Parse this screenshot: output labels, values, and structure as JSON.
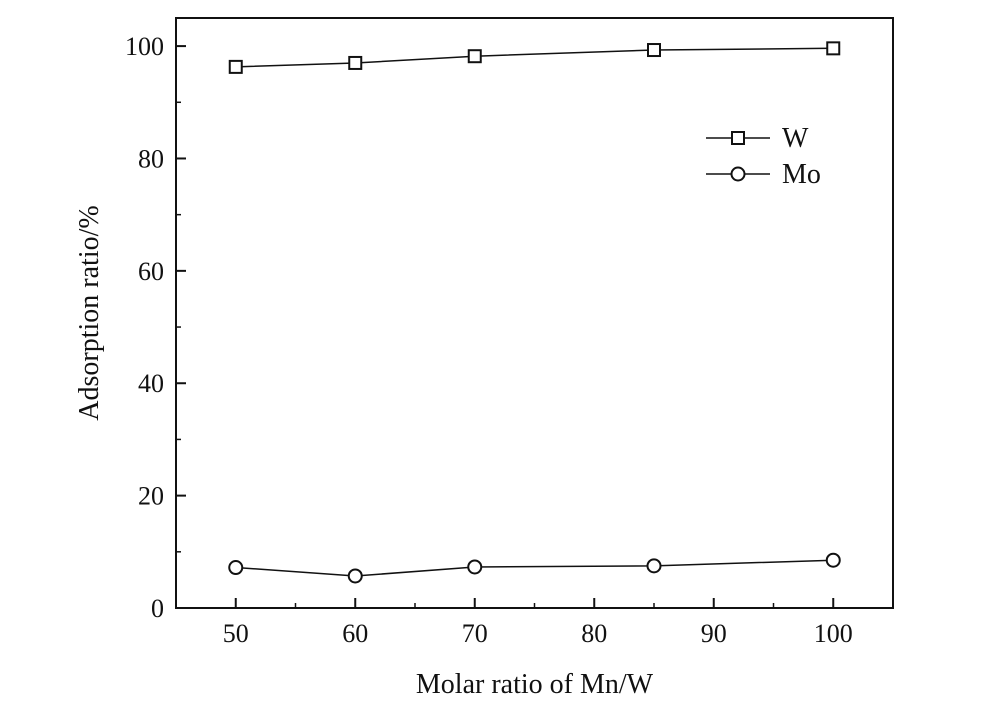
{
  "chart_data": {
    "type": "line",
    "xlabel": "Molar ratio of Mn/W",
    "ylabel": "Adsorption ratio/%",
    "xlim": [
      45,
      105
    ],
    "ylim": [
      0,
      105
    ],
    "x_ticks": [
      50,
      60,
      70,
      80,
      90,
      100
    ],
    "y_ticks": [
      0,
      20,
      40,
      60,
      80,
      100
    ],
    "x_tick_labels": [
      "50",
      "60",
      "70",
      "80",
      "90",
      "100"
    ],
    "y_tick_labels": [
      "0",
      "20",
      "40",
      "60",
      "80",
      "100"
    ],
    "grid": false,
    "legend_position": "top-right",
    "series": [
      {
        "name": "W",
        "marker": "square",
        "x": [
          50,
          60,
          70,
          85,
          100
        ],
        "values": [
          96.3,
          97.0,
          98.2,
          99.3,
          99.6
        ]
      },
      {
        "name": "Mo",
        "marker": "circle",
        "x": [
          50,
          60,
          70,
          85,
          100
        ],
        "values": [
          7.2,
          5.7,
          7.3,
          7.5,
          8.5
        ]
      }
    ]
  }
}
